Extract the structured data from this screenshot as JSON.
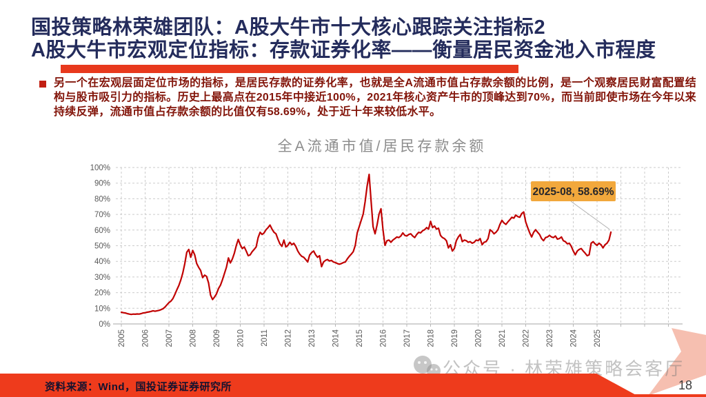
{
  "slide": {
    "title_line1": "国投策略林荣雄团队：A股大牛市十大核心跟踪关注指标2",
    "title_line2": "A股大牛市宏观定位指标：存款证券化率——衡量居民资金池入市程度",
    "body_paragraph": "另一个在宏观层面定位市场的指标，是居民存款的证券化率，也就是全A流通市值占存款余额的比例，是一个观察居民财富配置结构与股市吸引力的指标。历史上最高点在2015年中接近100%，2021年核心资产牛市的顶峰达到70%，而当前即使市场在今年以来持续反弹，流通市值占存款余额的比值仅有58.69%，处于近十年来较低水平。",
    "source_note": "资料来源：Wind，国投证券证券研究所",
    "watermark_text": "公众号 · 林荣雄策略会客厅",
    "page_number": "18",
    "colors": {
      "title_navy": "#242C5C",
      "accent_red": "#E8391D",
      "body_dark_red": "#821409",
      "line_red": "#C00000",
      "annotation_orange": "#F2A83C",
      "grid_gray": "#CBCBCB"
    }
  },
  "chart_data": {
    "type": "line",
    "title": "全A流通市值/居民存款余额",
    "frequency": "monthly",
    "x_start": "2005-01",
    "x_end": "2025-08",
    "xticks": [
      "2005",
      "2006",
      "2007",
      "2008",
      "2009",
      "2010",
      "2011",
      "2012",
      "2013",
      "2014",
      "2015",
      "2016",
      "2017",
      "2018",
      "2019",
      "2020",
      "2021",
      "2022",
      "2023",
      "2024",
      "2025"
    ],
    "yticks": [
      "0%",
      "10%",
      "20%",
      "30%",
      "40%",
      "50%",
      "60%",
      "70%",
      "80%",
      "90%",
      "100%"
    ],
    "ylim": [
      0,
      100
    ],
    "grid": true,
    "legend": "none",
    "annotation": {
      "label": "2025-08, 58.69%",
      "x": "2025-08",
      "y": 58.69
    },
    "series": [
      {
        "name": "全A流通市值/居民存款余额",
        "values": [
          7.5,
          7.2,
          7.0,
          6.6,
          6.3,
          6.1,
          6.3,
          6.2,
          6.4,
          6.3,
          6.6,
          7.0,
          7.2,
          7.5,
          7.7,
          8.0,
          8.4,
          8.1,
          8.4,
          8.7,
          9.1,
          9.7,
          10.8,
          12.2,
          13.6,
          14.6,
          16.2,
          18.8,
          21.8,
          24.6,
          28.2,
          32.5,
          38.5,
          45.8,
          47.6,
          42.6,
          47.0,
          44.2,
          38.6,
          36.2,
          34.2,
          29.6,
          31.2,
          30.4,
          26.2,
          18.4,
          15.6,
          17.2,
          19.2,
          22.6,
          24.8,
          28.2,
          32.2,
          36.2,
          42.2,
          39.0,
          41.5,
          45.2,
          50.2,
          54.0,
          50.6,
          48.2,
          49.2,
          46.6,
          43.6,
          44.2,
          46.2,
          47.6,
          49.2,
          55.2,
          58.6,
          57.2,
          58.2,
          60.2,
          61.6,
          63.2,
          60.6,
          58.6,
          57.6,
          54.2,
          51.2,
          49.6,
          53.6,
          49.2,
          50.2,
          52.2,
          50.6,
          51.6,
          49.6,
          46.6,
          44.6,
          43.2,
          42.6,
          41.2,
          39.6,
          44.0,
          45.6,
          46.6,
          44.2,
          42.6,
          43.6,
          36.6,
          39.6,
          40.6,
          41.2,
          40.2,
          40.6,
          39.6,
          39.2,
          38.6,
          38.2,
          38.6,
          39.2,
          39.6,
          41.6,
          43.2,
          44.6,
          46.2,
          50.2,
          58.2,
          62.2,
          66.2,
          70.2,
          78.2,
          88.2,
          95.6,
          78.2,
          62.2,
          57.6,
          63.2,
          70.2,
          73.6,
          60.2,
          50.2,
          53.2,
          53.6,
          52.2,
          53.6,
          54.6,
          55.6,
          55.2,
          56.2,
          58.2,
          56.6,
          56.2,
          57.2,
          57.6,
          56.2,
          55.2,
          57.2,
          58.6,
          58.2,
          59.6,
          60.2,
          61.6,
          60.6,
          65.6,
          61.6,
          62.6,
          60.6,
          61.2,
          56.6,
          55.2,
          54.6,
          53.2,
          48.6,
          50.6,
          46.6,
          48.2,
          53.2,
          55.6,
          57.2,
          52.6,
          53.6,
          53.2,
          52.2,
          52.6,
          51.6,
          52.2,
          53.6,
          53.2,
          54.6,
          50.6,
          52.2,
          52.6,
          54.6,
          60.2,
          59.2,
          57.6,
          58.6,
          60.2,
          63.6,
          66.2,
          64.6,
          63.6,
          65.2,
          66.6,
          68.2,
          67.6,
          69.6,
          68.6,
          68.2,
          70.6,
          71.6,
          65.2,
          61.6,
          58.2,
          55.6,
          58.6,
          60.2,
          58.6,
          57.2,
          54.6,
          53.2,
          55.2,
          55.6,
          56.6,
          55.6,
          55.2,
          56.2,
          54.2,
          54.6,
          55.6,
          53.2,
          52.6,
          51.2,
          51.6,
          49.6,
          46.6,
          44.2,
          46.6,
          47.6,
          48.2,
          46.6,
          45.2,
          43.6,
          44.2,
          51.6,
          52.6,
          51.2,
          50.2,
          51.6,
          50.6,
          48.6,
          50.6,
          51.6,
          53.6,
          58.69
        ]
      }
    ]
  }
}
